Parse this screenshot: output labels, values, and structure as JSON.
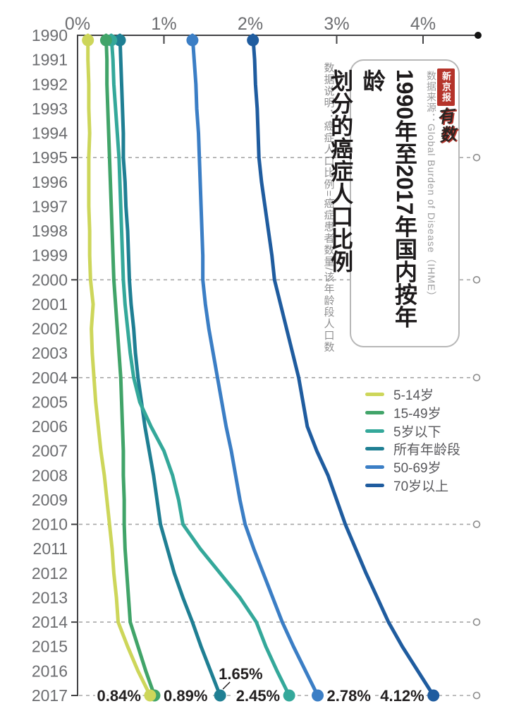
{
  "title": {
    "line1": "1990年至2017年国内按年龄",
    "line2": "划分的癌症人口比例"
  },
  "branding": {
    "publisher": "新京报",
    "logo": "有数"
  },
  "annotations": {
    "source": "数据来源：Global Burden of Disease（IHME）",
    "note": "数据说明：癌症人口比例=癌症患者数量/该年龄段人口数"
  },
  "colors": {
    "axis": "#434345",
    "tick_label": "#6c6d70",
    "year_label": "#6c6d70",
    "gridline": "#a8a8a8",
    "grid_circle": "#8d8d8d",
    "value_label": "#232021",
    "axis_end_dot": "#141414",
    "badge_red": "#b5332a"
  },
  "chart_data": {
    "type": "line",
    "title": "1990年至2017年国内按年龄划分的癌症人口比例",
    "orientation": "vertical-time",
    "x_axis": {
      "label": "",
      "ticks": [
        "0%",
        "1%",
        "2%",
        "3%",
        "4%"
      ],
      "tick_values": [
        0,
        1,
        2,
        3,
        4
      ],
      "range": [
        0,
        4.63
      ],
      "position": "top"
    },
    "y_axis": {
      "years": [
        1990,
        1991,
        1992,
        1993,
        1994,
        1995,
        1996,
        1997,
        1998,
        1999,
        2000,
        2001,
        2002,
        2003,
        2004,
        2005,
        2006,
        2007,
        2008,
        2009,
        2010,
        2011,
        2012,
        2013,
        2014,
        2015,
        2016,
        2017
      ],
      "gridline_years": [
        1995,
        2000,
        2004,
        2010,
        2014,
        2017
      ]
    },
    "legend_position": "right-middle",
    "series": [
      {
        "name": "5-14岁",
        "color": "#cdd65a",
        "end_label": "0.84%",
        "label_side": "left",
        "values": [
          0.12,
          0.12,
          0.13,
          0.13,
          0.14,
          0.13,
          0.13,
          0.13,
          0.14,
          0.14,
          0.15,
          0.18,
          0.16,
          0.17,
          0.19,
          0.21,
          0.24,
          0.27,
          0.31,
          0.34,
          0.37,
          0.4,
          0.42,
          0.45,
          0.47,
          0.58,
          0.7,
          0.84
        ]
      },
      {
        "name": "15-49岁",
        "color": "#41a469",
        "end_label": "0.89%",
        "label_side": "right",
        "values": [
          0.33,
          0.34,
          0.34,
          0.35,
          0.36,
          0.37,
          0.38,
          0.39,
          0.4,
          0.41,
          0.42,
          0.44,
          0.46,
          0.48,
          0.5,
          0.51,
          0.52,
          0.53,
          0.53,
          0.54,
          0.54,
          0.55,
          0.57,
          0.59,
          0.61,
          0.7,
          0.79,
          0.89
        ]
      },
      {
        "name": "5岁以下",
        "color": "#34a89a",
        "end_label": "2.45%",
        "label_side": "left",
        "values": [
          0.39,
          0.41,
          0.42,
          0.44,
          0.46,
          0.48,
          0.49,
          0.5,
          0.51,
          0.52,
          0.53,
          0.55,
          0.58,
          0.61,
          0.65,
          0.72,
          0.85,
          1.0,
          1.1,
          1.17,
          1.22,
          1.42,
          1.65,
          1.88,
          2.07,
          2.18,
          2.31,
          2.45
        ]
      },
      {
        "name": "所有年龄段",
        "color": "#1f7f93",
        "end_label": "1.65%",
        "label_side": "above",
        "values": [
          0.49,
          0.5,
          0.51,
          0.52,
          0.53,
          0.53,
          0.55,
          0.56,
          0.58,
          0.59,
          0.6,
          0.62,
          0.65,
          0.67,
          0.7,
          0.74,
          0.78,
          0.83,
          0.88,
          0.92,
          0.96,
          1.04,
          1.12,
          1.22,
          1.33,
          1.43,
          1.54,
          1.65
        ]
      },
      {
        "name": "50-69岁",
        "color": "#3b7ec5",
        "end_label": "2.78%",
        "label_side": "right",
        "values": [
          1.33,
          1.35,
          1.37,
          1.38,
          1.4,
          1.41,
          1.42,
          1.43,
          1.44,
          1.45,
          1.45,
          1.48,
          1.52,
          1.57,
          1.62,
          1.67,
          1.72,
          1.78,
          1.83,
          1.88,
          1.94,
          2.04,
          2.15,
          2.26,
          2.37,
          2.5,
          2.64,
          2.78
        ]
      },
      {
        "name": "70岁以上",
        "color": "#1f5c9f",
        "end_label": "4.12%",
        "label_side": "left",
        "values": [
          2.03,
          2.05,
          2.06,
          2.08,
          2.09,
          2.1,
          2.13,
          2.17,
          2.21,
          2.25,
          2.28,
          2.35,
          2.42,
          2.49,
          2.56,
          2.61,
          2.66,
          2.77,
          2.9,
          3.0,
          3.1,
          3.22,
          3.34,
          3.47,
          3.6,
          3.76,
          3.94,
          4.12
        ]
      }
    ]
  }
}
